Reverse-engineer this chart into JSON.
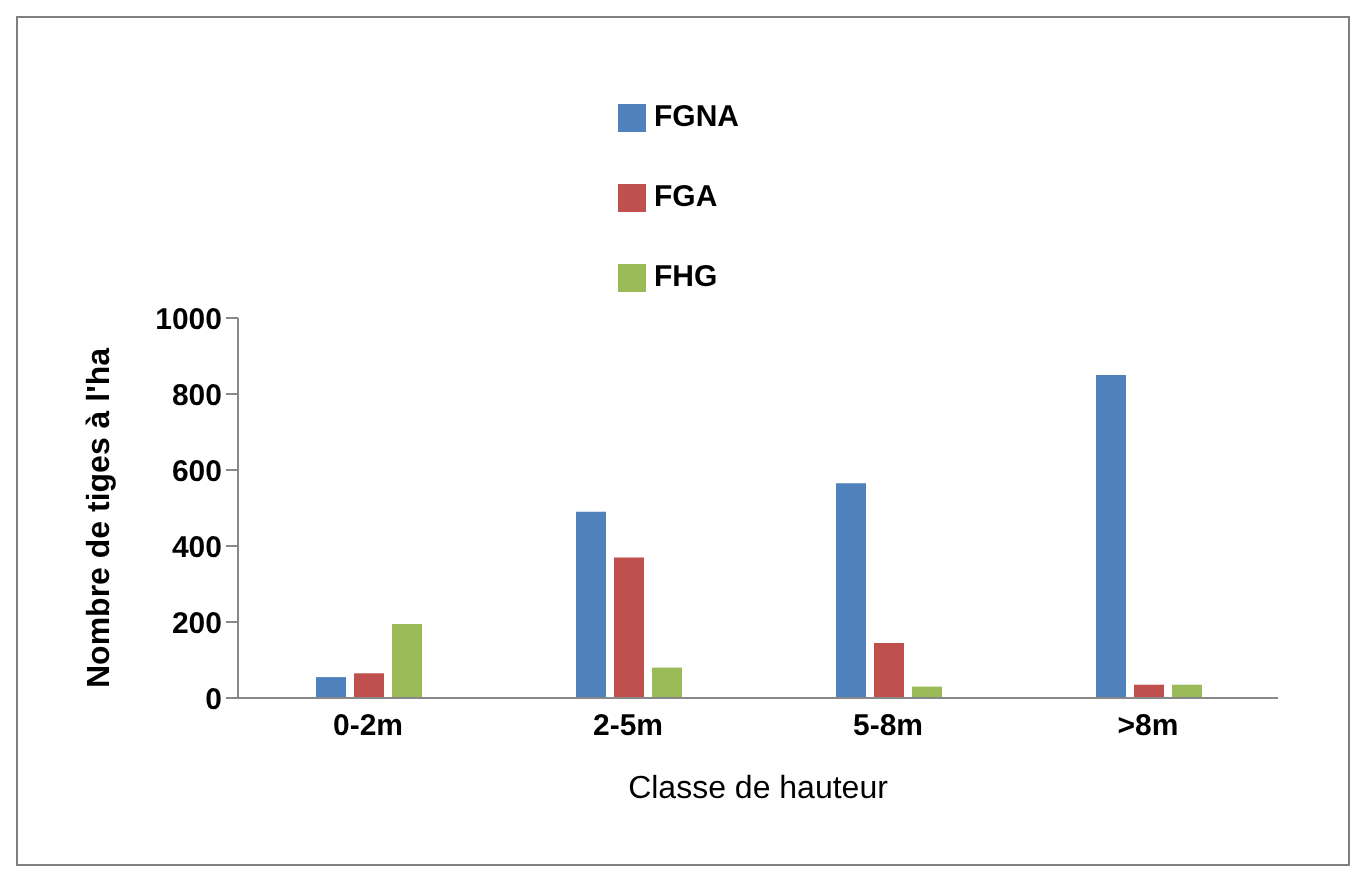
{
  "chart_data": {
    "type": "bar",
    "xlabel": "Classe de hauteur",
    "ylabel": "Nombre de tiges à l'ha",
    "categories": [
      "0-2m",
      "2-5m",
      "5-8m",
      ">8m"
    ],
    "series": [
      {
        "name": "FGNA",
        "color": "#4f81bd",
        "values": [
          55,
          490,
          565,
          850
        ]
      },
      {
        "name": "FGA",
        "color": "#c0504d",
        "values": [
          65,
          370,
          145,
          35
        ]
      },
      {
        "name": "FHG",
        "color": "#9bbb59",
        "values": [
          195,
          80,
          30,
          35
        ]
      }
    ],
    "ylim": [
      0,
      1000
    ],
    "yticks": [
      0,
      200,
      400,
      600,
      800,
      1000
    ],
    "grid": false,
    "legend": "top"
  }
}
